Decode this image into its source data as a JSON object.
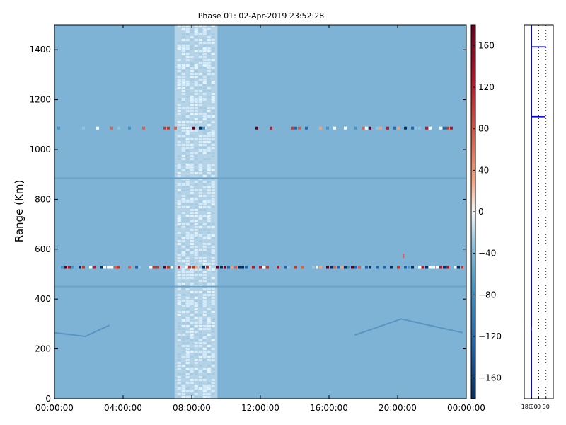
{
  "chart_data": [
    {
      "type": "heatmap",
      "title": "Phase 01: 02-Apr-2019 23:52:28",
      "xlabel": "",
      "ylabel": "Range (Km)",
      "x_ticks": [
        "00:00:00",
        "04:00:00",
        "08:00:00",
        "12:00:00",
        "16:00:00",
        "20:00:00",
        "00:00:00"
      ],
      "x_range_hours": [
        0,
        24
      ],
      "y_ticks": [
        0,
        200,
        400,
        600,
        800,
        1000,
        1200,
        1400
      ],
      "ylim": [
        0,
        1500
      ],
      "colormap": "RdBu_r",
      "clim": [
        -180,
        180
      ],
      "colorbar_ticks": [
        -160,
        -120,
        -80,
        -40,
        0,
        40,
        80,
        120,
        160
      ],
      "background_phase": -95,
      "noisy_band_hours": [
        7.0,
        9.5
      ],
      "strong_rows": [
        {
          "range_km": 527,
          "description": "mixed red/blue echoes across full time span"
        },
        {
          "range_km": 1086,
          "description": "intermittent multicolor echoes"
        }
      ],
      "faint_rows_km": [
        450,
        885
      ],
      "annotations_km": [
        570
      ]
    },
    {
      "type": "line",
      "xlabel": "",
      "x_ticks": [
        "-180",
        "-90",
        "0",
        "90"
      ],
      "xlim": [
        -180,
        180
      ],
      "ylim": [
        0,
        1500
      ],
      "series": [
        {
          "color": "#0000ff",
          "points": [
            [
              -90,
              0
            ],
            [
              -90,
              270
            ],
            [
              -92,
              280
            ],
            [
              -90,
              290
            ],
            [
              -90,
              1130
            ],
            [
              -90,
              1131
            ],
            [
              80,
              1131
            ],
            [
              -90,
              1132
            ],
            [
              -90,
              1410
            ],
            [
              -90,
              1411
            ],
            [
              90,
              1411
            ],
            [
              -90,
              1412
            ],
            [
              -90,
              1500
            ]
          ]
        }
      ]
    }
  ],
  "colors": {
    "background_field": "#7fb3d5",
    "trace": "#0000ff",
    "axis": "#000000"
  }
}
